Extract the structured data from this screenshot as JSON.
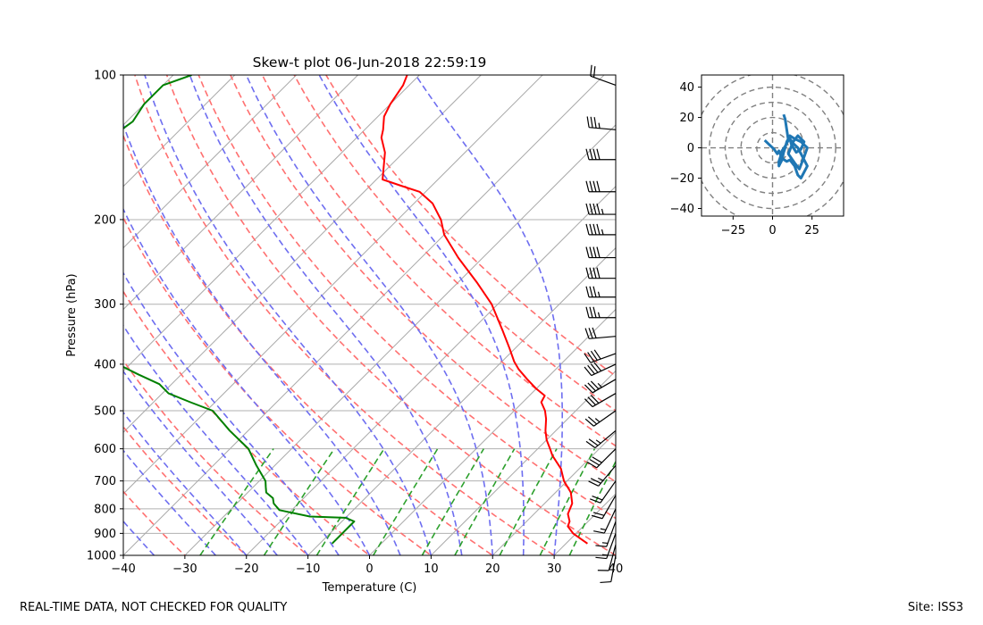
{
  "chart_data": [
    {
      "type": "skew-t",
      "title": "Skew-t plot 06-Jun-2018 22:59:19",
      "xlabel": "Temperature (C)",
      "ylabel": "Pressure (hPa)",
      "xlim": [
        -40,
        40
      ],
      "ylim": [
        1000,
        100
      ],
      "x_ticks": [
        -40,
        -30,
        -20,
        -10,
        0,
        10,
        20,
        30,
        40
      ],
      "x_tick_labels": [
        "−40",
        "−30",
        "−20",
        "−10",
        "0",
        "10",
        "20",
        "30",
        "40"
      ],
      "y_ticks": [
        100,
        200,
        300,
        400,
        500,
        600,
        700,
        800,
        900,
        1000
      ],
      "y_tick_labels": [
        "100",
        "200",
        "300",
        "400",
        "500",
        "600",
        "700",
        "800",
        "900",
        "1000"
      ],
      "grid": true,
      "temperature": {
        "name": "Temperature",
        "color": "#ff0000",
        "pressure": [
          945,
          900,
          870,
          850,
          820,
          780,
          740,
          700,
          660,
          620,
          600,
          575,
          550,
          520,
          500,
          480,
          465,
          450,
          430,
          410,
          395,
          370,
          340,
          300,
          270,
          240,
          215,
          200,
          185,
          175,
          170,
          165,
          145,
          135,
          130,
          122,
          115,
          105,
          100
        ],
        "temperature": [
          33.5,
          29.5,
          27.5,
          27,
          25.5,
          24.5,
          22.5,
          19.5,
          17,
          13.5,
          12,
          10,
          8.3,
          6.5,
          5,
          3,
          2.5,
          0,
          -3,
          -6,
          -8,
          -11,
          -15,
          -21,
          -27,
          -34,
          -40,
          -43,
          -47,
          -51,
          -55,
          -59,
          -63,
          -66,
          -67,
          -69,
          -70,
          -71,
          -72
        ]
      },
      "dewpoint": {
        "name": "Dewpoint",
        "color": "#008000",
        "pressure": [
          945,
          900,
          870,
          850,
          835,
          830,
          805,
          780,
          760,
          740,
          720,
          700,
          650,
          600,
          550,
          500,
          480,
          460,
          440,
          420,
          400,
          380,
          360,
          340,
          320,
          300,
          290,
          280,
          260,
          240,
          220,
          200,
          190,
          185,
          180,
          175,
          165,
          155,
          145,
          135,
          125,
          115,
          105,
          100
        ],
        "temperature": [
          -8,
          -8,
          -8,
          -8,
          -10,
          -16,
          -22,
          -24,
          -25,
          -27,
          -28,
          -29,
          -33,
          -37,
          -43,
          -49,
          -54,
          -59,
          -62,
          -67,
          -72,
          -76,
          -80,
          -83,
          -85,
          -89,
          -92,
          -95,
          -97,
          -100,
          -103,
          -105,
          -106,
          -103,
          -107,
          -107,
          -110,
          -110,
          -111,
          -110,
          -109,
          -110,
          -110,
          -107
        ]
      },
      "isotherms_c": [
        -120,
        -110,
        -100,
        -90,
        -80,
        -70,
        -60,
        -50,
        -40,
        -30,
        -20,
        -10,
        0,
        10,
        20,
        30,
        40
      ],
      "dry_adiabats_theta_c": [
        -30,
        -20,
        -10,
        0,
        10,
        20,
        30,
        40,
        50,
        60,
        70,
        80,
        90
      ],
      "moist_adiabats_start_c": [
        -35,
        -25,
        -20,
        -15,
        -10,
        -5,
        0,
        5,
        10,
        15,
        20,
        25,
        30
      ],
      "mixing_ratio_lines_gkg": [
        0.4,
        1,
        2,
        4,
        7,
        10,
        16,
        24,
        32
      ],
      "line_colors": {
        "dry_adiabat": "#ff7070",
        "moist_adiabat": "#6e6ef0",
        "mixing_ratio": "#2ca02c",
        "isotherm": "#aaaaaa"
      },
      "wind_barbs": {
        "color": "#000000",
        "pressure": [
          105,
          130,
          150,
          175,
          195,
          215,
          240,
          265,
          290,
          320,
          350,
          380,
          400,
          430,
          460,
          500,
          550,
          600,
          650,
          700,
          750,
          800,
          850,
          900,
          950,
          1000
        ],
        "speed_kt": [
          20,
          35,
          40,
          40,
          45,
          45,
          40,
          40,
          35,
          35,
          30,
          40,
          40,
          35,
          30,
          25,
          25,
          30,
          25,
          20,
          20,
          15,
          15,
          15,
          10,
          10
        ],
        "direction_deg": [
          290,
          275,
          270,
          270,
          270,
          270,
          270,
          270,
          270,
          270,
          265,
          250,
          245,
          240,
          240,
          235,
          230,
          225,
          220,
          215,
          210,
          205,
          200,
          200,
          195,
          190
        ]
      }
    },
    {
      "type": "hodograph",
      "xlim": [
        -45,
        45
      ],
      "ylim": [
        -45,
        48
      ],
      "x_ticks": [
        -25,
        0,
        25
      ],
      "x_tick_labels": [
        "−25",
        "0",
        "25"
      ],
      "y_ticks": [
        -40,
        -20,
        0,
        20,
        40
      ],
      "y_tick_labels": [
        "−40",
        "−20",
        "0",
        "20",
        "40"
      ],
      "rings": [
        10,
        20,
        30,
        40,
        50
      ],
      "line_color": "#1f77b4",
      "u": [
        -5,
        -2,
        1,
        3,
        4,
        6,
        9,
        11,
        14,
        16,
        18,
        22,
        19,
        16,
        13,
        11,
        12,
        15,
        18,
        20,
        16,
        13,
        10,
        14,
        17,
        20,
        22,
        18,
        14,
        11,
        9,
        8,
        7,
        6,
        5,
        4,
        4,
        5,
        6,
        8,
        10,
        9,
        8,
        7
      ],
      "v": [
        5,
        2,
        -1,
        -4,
        -2,
        -7,
        -9,
        -8,
        -12,
        -18,
        -20,
        -12,
        -6,
        0,
        3,
        6,
        2,
        -3,
        -1,
        4,
        8,
        4,
        -4,
        -10,
        -14,
        -6,
        0,
        4,
        6,
        8,
        4,
        0,
        -3,
        -8,
        -10,
        -12,
        -9,
        -6,
        -2,
        1,
        5,
        12,
        19,
        22
      ]
    }
  ],
  "footer": {
    "left": "REAL-TIME DATA, NOT CHECKED FOR QUALITY",
    "right": "Site: ISS3"
  }
}
